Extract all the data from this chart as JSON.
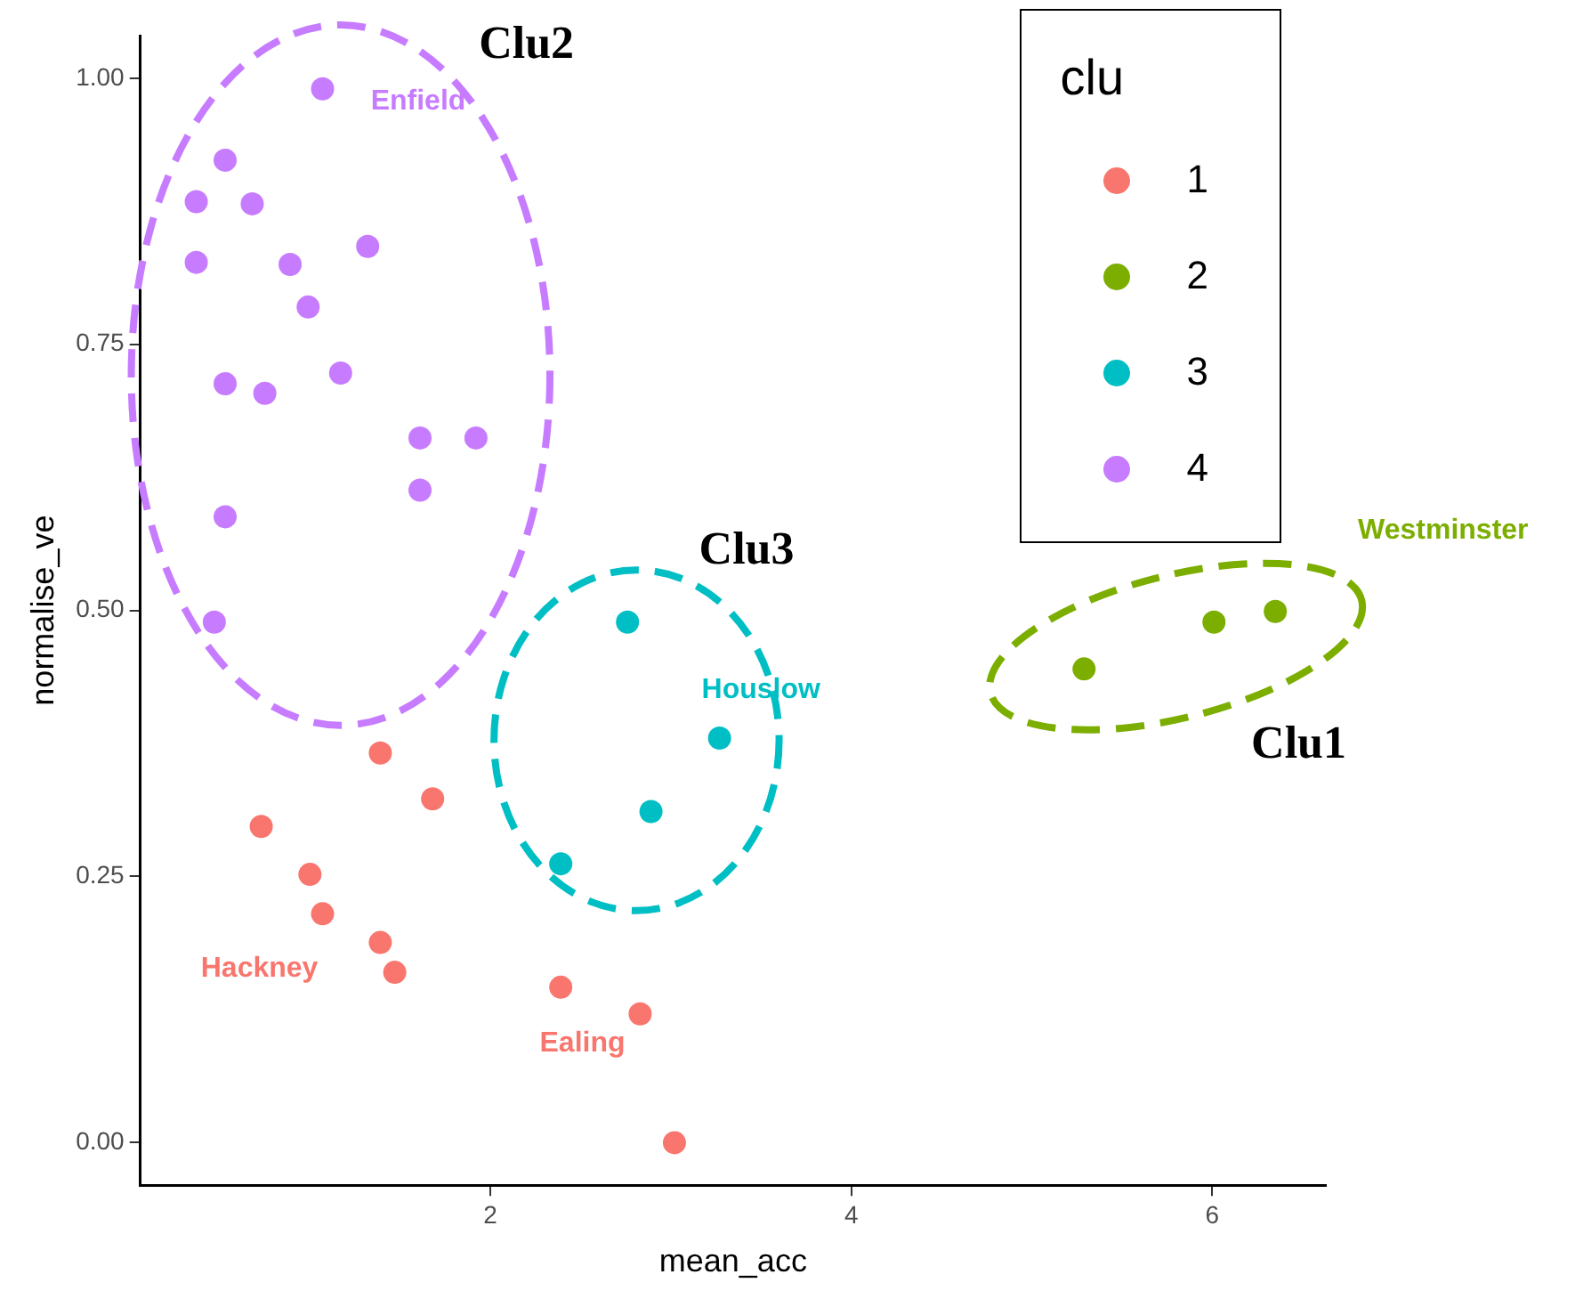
{
  "chart_data": {
    "type": "scatter",
    "xlabel": "mean_acc",
    "ylabel": "normalise_ve",
    "legend_title": "clu",
    "legend": "top right",
    "marker": "circle",
    "grid": false,
    "xlim": [
      0.06,
      6.63
    ],
    "xticks": [
      2,
      4,
      6
    ],
    "ylim": [
      -0.04,
      1.04
    ],
    "yticks": [
      {
        "value": 0,
        "label": "0.00"
      },
      {
        "value": 0.25,
        "label": "0.25"
      },
      {
        "value": 0.5,
        "label": "0.50"
      },
      {
        "value": 0.75,
        "label": "0.75"
      },
      {
        "value": 1,
        "label": "1.00"
      }
    ],
    "series": [
      {
        "name": "1",
        "color": "#f8766d",
        "x": [
          1.39,
          1.68,
          0.73,
          1.0,
          1.07,
          1.39,
          1.47,
          2.39,
          2.83,
          3.02
        ],
        "values": [
          0.366,
          0.323,
          0.297,
          0.252,
          0.215,
          0.188,
          0.16,
          0.146,
          0.121,
          0.0
        ]
      },
      {
        "name": "2",
        "color": "#7cae00",
        "x": [
          5.29,
          6.01,
          6.35
        ],
        "values": [
          0.445,
          0.489,
          0.499
        ]
      },
      {
        "name": "3",
        "color": "#00bfc4",
        "x": [
          2.76,
          3.27,
          2.89,
          2.39
        ],
        "values": [
          0.489,
          0.38,
          0.311,
          0.262
        ]
      },
      {
        "name": "4",
        "color": "#c77cff",
        "x": [
          1.07,
          0.53,
          0.37,
          0.68,
          0.37,
          0.89,
          1.32,
          0.99,
          0.53,
          0.75,
          1.17,
          1.61,
          1.92,
          1.61,
          0.53,
          0.47
        ],
        "values": [
          0.99,
          0.923,
          0.884,
          0.882,
          0.827,
          0.825,
          0.842,
          0.785,
          0.713,
          0.704,
          0.723,
          0.662,
          0.662,
          0.613,
          0.588,
          0.489
        ]
      }
    ],
    "annotations": [
      "Clu2",
      "Clu3",
      "Clu1",
      "Enfield",
      "Westminster",
      "Houslow",
      "Hackney",
      "Ealing"
    ]
  }
}
